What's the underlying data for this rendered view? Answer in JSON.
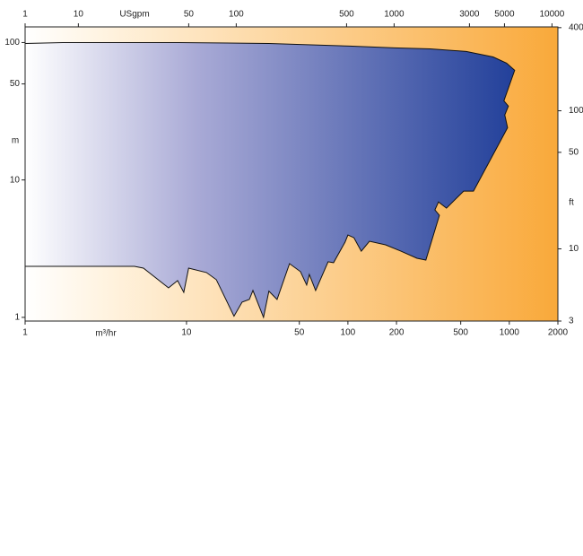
{
  "chart_data": {
    "type": "area",
    "xlabel": "m³/hr",
    "x2label": "USgpm",
    "ylabel": "m",
    "y2label": "ft",
    "xscale": "log",
    "yscale": "log",
    "xlim": [
      1,
      2000
    ],
    "xticks": [
      1,
      10,
      50,
      100,
      200,
      500,
      1000,
      2000
    ],
    "x2lim": [
      4.6,
      10900
    ],
    "x2ticks": [
      1,
      10,
      50,
      100,
      500,
      1000,
      3000,
      5000,
      10000
    ],
    "ylim": [
      0.94,
      130
    ],
    "yticks": [
      1,
      10,
      50,
      100
    ],
    "y2lim": [
      3,
      405
    ],
    "y2ticks": [
      3,
      10,
      50,
      100,
      400
    ],
    "color": "#22409a",
    "background_color": "#f9a93a",
    "x": [
      1,
      1.71,
      9.03,
      32.4,
      102.6,
      194,
      324,
      541,
      794,
      962,
      1080,
      1000,
      926,
      987,
      938,
      975,
      600,
      521,
      408,
      364,
      346,
      369,
      304,
      268,
      213,
      171,
      136,
      121,
      109,
      100,
      96,
      81.5,
      75.4,
      63.1,
      57.7,
      55.5,
      50.8,
      43.5,
      36.4,
      32.4,
      30.0,
      25.8,
      24.5,
      22.1,
      19.7,
      15.3,
      13.3,
      10.3,
      9.62,
      8.8,
      7.74,
      5.41,
      4.76,
      1
    ],
    "values": [
      98.4,
      100,
      100,
      98.4,
      94.2,
      91.4,
      90.0,
      86.1,
      78.6,
      70.8,
      62.8,
      48.6,
      37.7,
      34.5,
      29.7,
      24.0,
      8.29,
      8.29,
      6.24,
      6.92,
      6.05,
      5.53,
      2.61,
      2.69,
      3.03,
      3.37,
      3.58,
      3.03,
      3.8,
      3.97,
      3.53,
      2.5,
      2.54,
      1.57,
      2.05,
      1.72,
      2.15,
      2.46,
      1.35,
      1.55,
      1.0,
      1.57,
      1.35,
      1.29,
      1.02,
      1.88,
      2.12,
      2.28,
      1.52,
      1.85,
      1.64,
      2.28,
      2.35,
      2.35
    ]
  }
}
